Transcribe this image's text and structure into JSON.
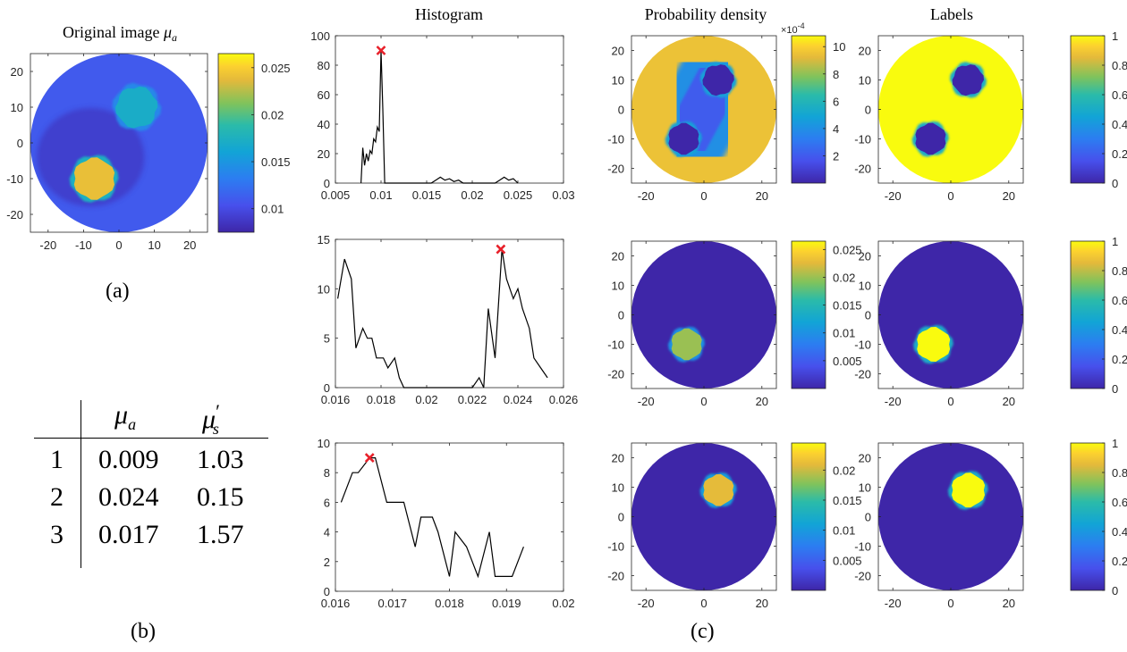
{
  "titles": {
    "original": "Original image",
    "original_symbol": "μ",
    "original_sub": "a",
    "histogram": "Histogram",
    "density": "Probability density",
    "labels": "Labels"
  },
  "captions": {
    "a": "(a)",
    "b": "(b)",
    "c": "(c)"
  },
  "table": {
    "col1_symbol": "μ",
    "col1_sub": "a",
    "col2_symbol": "μ",
    "col2_prime": "′",
    "col2_sub": "s",
    "rows": [
      {
        "id": "1",
        "mu_a": "0.009",
        "mu_s": "1.03"
      },
      {
        "id": "2",
        "mu_a": "0.024",
        "mu_s": "0.15"
      },
      {
        "id": "3",
        "mu_a": "0.017",
        "mu_s": "1.57"
      }
    ]
  },
  "colors": {
    "dark": "#3e26a8",
    "mid": "#2bb6bb",
    "bright": "#f9fb0e",
    "curve": "#000000",
    "marker": "#e8202a"
  },
  "chart_data": [
    {
      "type": "heatmap",
      "id": "original",
      "title": "Original image μa",
      "xticks": [
        "-20",
        "-10",
        "0",
        "10",
        "20"
      ],
      "yticks": [
        "20",
        "10",
        "0",
        "-10",
        "-20"
      ],
      "colorbar": {
        "min": 0.0075,
        "max": 0.0265,
        "ticks": [
          "0.025",
          "0.02",
          "0.015",
          "0.01"
        ]
      },
      "disk": {
        "cx": 0,
        "cy": 0,
        "r": 25,
        "value": 0.011
      },
      "blobs": [
        {
          "cx": -7,
          "cy": -10,
          "r": 6,
          "value": 0.024
        },
        {
          "cx": 5,
          "cy": 10,
          "r": 6,
          "value": 0.017
        }
      ]
    },
    {
      "type": "line",
      "id": "hist1",
      "title": "Histogram",
      "xlim": [
        0.005,
        0.03
      ],
      "ylim": [
        0,
        100
      ],
      "xticks": [
        "0.005",
        "0.01",
        "0.015",
        "0.02",
        "0.025",
        "0.03"
      ],
      "yticks": [
        "0",
        "20",
        "40",
        "60",
        "80",
        "100"
      ],
      "x": [
        0.0078,
        0.008,
        0.0082,
        0.0084,
        0.0086,
        0.0088,
        0.009,
        0.0092,
        0.0094,
        0.0096,
        0.0098,
        0.01,
        0.0102,
        0.0104,
        0.0106,
        0.0108,
        0.011,
        0.0155,
        0.016,
        0.0165,
        0.017,
        0.0175,
        0.018,
        0.0185,
        0.019,
        0.0225,
        0.023,
        0.0235,
        0.024,
        0.0245,
        0.025
      ],
      "y": [
        0,
        24,
        12,
        20,
        15,
        22,
        20,
        30,
        28,
        38,
        35,
        90,
        50,
        0,
        0,
        0,
        0,
        0,
        2,
        4,
        2,
        3,
        1,
        2,
        0,
        0,
        2,
        4,
        2,
        3,
        0
      ],
      "peak": {
        "x": 0.01,
        "y": 90
      }
    },
    {
      "type": "line",
      "id": "hist2",
      "xlim": [
        0.016,
        0.026
      ],
      "ylim": [
        0,
        15
      ],
      "xticks": [
        "0.016",
        "0.018",
        "0.02",
        "0.022",
        "0.024",
        "0.026"
      ],
      "yticks": [
        "0",
        "5",
        "10",
        "15"
      ],
      "x": [
        0.0161,
        0.0164,
        0.0167,
        0.0169,
        0.0172,
        0.0174,
        0.0176,
        0.0178,
        0.0181,
        0.0183,
        0.0186,
        0.0188,
        0.019,
        0.0193,
        0.0196,
        0.0198,
        0.0201,
        0.0218,
        0.022,
        0.0223,
        0.0225,
        0.0227,
        0.023,
        0.0233,
        0.0235,
        0.0238,
        0.024,
        0.0242,
        0.0245,
        0.0247,
        0.025,
        0.0253
      ],
      "y": [
        9,
        13,
        11,
        4,
        6,
        5,
        5,
        3,
        3,
        2,
        3,
        1,
        0,
        0,
        0,
        0,
        0,
        0,
        0,
        1,
        0,
        8,
        3,
        14,
        11,
        9,
        10,
        8,
        6,
        3,
        2,
        1
      ],
      "peak": {
        "x": 0.02325,
        "y": 14
      }
    },
    {
      "type": "line",
      "id": "hist3",
      "xlim": [
        0.016,
        0.02
      ],
      "ylim": [
        0,
        10
      ],
      "xticks": [
        "0.016",
        "0.017",
        "0.018",
        "0.019",
        "0.02"
      ],
      "yticks": [
        "0",
        "2",
        "4",
        "6",
        "8",
        "10"
      ],
      "x": [
        0.0161,
        0.0163,
        0.0164,
        0.0166,
        0.0167,
        0.0169,
        0.017,
        0.0172,
        0.0174,
        0.0175,
        0.0177,
        0.0178,
        0.018,
        0.0181,
        0.0183,
        0.0185,
        0.0187,
        0.0188,
        0.019,
        0.0191,
        0.0193
      ],
      "y": [
        6,
        8,
        8,
        9,
        9,
        6,
        6,
        6,
        3,
        5,
        5,
        4,
        1,
        4,
        3,
        1,
        4,
        1,
        1,
        1,
        3
      ],
      "peak": {
        "x": 0.0166,
        "y": 9
      }
    },
    {
      "type": "heatmap",
      "id": "density1",
      "title": "Probability density",
      "xticks": [
        "-20",
        "0",
        "20"
      ],
      "yticks": [
        "20",
        "10",
        "0",
        "-10",
        "-20"
      ],
      "colorbar": {
        "min": 0,
        "max": 0.00108,
        "ticks": [
          "10",
          "8",
          "6",
          "4",
          "2"
        ],
        "exponent_base": "×10",
        "exponent_power": "-4"
      },
      "disk": {
        "cx": 0,
        "cy": 0,
        "r": 25,
        "value": 0.00095
      },
      "band": {
        "from": [
          -6,
          -10
        ],
        "to": [
          5,
          10
        ],
        "width": 11,
        "value": 0.0004
      },
      "blobs": [
        {
          "cx": -7,
          "cy": -10,
          "r": 5.5,
          "value": 0
        },
        {
          "cx": 5,
          "cy": 10,
          "r": 5.5,
          "value": 0
        }
      ]
    },
    {
      "type": "heatmap",
      "id": "density2",
      "xticks": [
        "-20",
        "0",
        "20"
      ],
      "yticks": [
        "20",
        "10",
        "0",
        "-10",
        "-20"
      ],
      "colorbar": {
        "min": 0,
        "max": 0.0265,
        "ticks": [
          "0.025",
          "0.02",
          "0.015",
          "0.01",
          "0.005"
        ]
      },
      "disk": {
        "cx": 0,
        "cy": 0,
        "r": 25,
        "value": 0
      },
      "blobs": [
        {
          "cx": -6,
          "cy": -10,
          "r": 5.5,
          "value": 0.02
        }
      ]
    },
    {
      "type": "heatmap",
      "id": "density3",
      "xticks": [
        "-20",
        "0",
        "20"
      ],
      "yticks": [
        "20",
        "10",
        "0",
        "-10",
        "-20"
      ],
      "colorbar": {
        "min": 0,
        "max": 0.0245,
        "ticks": [
          "0.02",
          "0.015",
          "0.01",
          "0.005"
        ]
      },
      "disk": {
        "cx": 0,
        "cy": 0,
        "r": 25,
        "value": 0
      },
      "blobs": [
        {
          "cx": 5,
          "cy": 9,
          "r": 5.5,
          "value": 0.021
        }
      ]
    },
    {
      "type": "heatmap",
      "id": "labels1",
      "title": "Labels",
      "xticks": [
        "-20",
        "0",
        "20"
      ],
      "yticks": [
        "20",
        "10",
        "0",
        "-10",
        "-20"
      ],
      "colorbar": {
        "min": 0,
        "max": 1,
        "ticks": [
          "1",
          "0.8",
          "0.6",
          "0.4",
          "0.2",
          "0"
        ]
      },
      "disk": {
        "cx": 0,
        "cy": 0,
        "r": 25,
        "value": 1
      },
      "blobs": [
        {
          "cx": -7,
          "cy": -10,
          "r": 5.5,
          "value": 0
        },
        {
          "cx": 6,
          "cy": 10,
          "r": 5.5,
          "value": 0
        }
      ]
    },
    {
      "type": "heatmap",
      "id": "labels2",
      "xticks": [
        "-20",
        "0",
        "20"
      ],
      "yticks": [
        "20",
        "10",
        "0",
        "-10",
        "-20"
      ],
      "colorbar": {
        "min": 0,
        "max": 1,
        "ticks": [
          "1",
          "0.8",
          "0.6",
          "0.4",
          "0.2",
          "0"
        ]
      },
      "disk": {
        "cx": 0,
        "cy": 0,
        "r": 25,
        "value": 0
      },
      "blobs": [
        {
          "cx": -6,
          "cy": -10,
          "r": 6,
          "value": 1
        }
      ]
    },
    {
      "type": "heatmap",
      "id": "labels3",
      "xticks": [
        "-20",
        "0",
        "20"
      ],
      "yticks": [
        "20",
        "10",
        "0",
        "-10",
        "-20"
      ],
      "colorbar": {
        "min": 0,
        "max": 1,
        "ticks": [
          "1",
          "0.8",
          "0.6",
          "0.4",
          "0.2",
          "0"
        ]
      },
      "disk": {
        "cx": 0,
        "cy": 0,
        "r": 25,
        "value": 0
      },
      "blobs": [
        {
          "cx": 6,
          "cy": 9,
          "r": 6,
          "value": 1
        }
      ]
    }
  ]
}
